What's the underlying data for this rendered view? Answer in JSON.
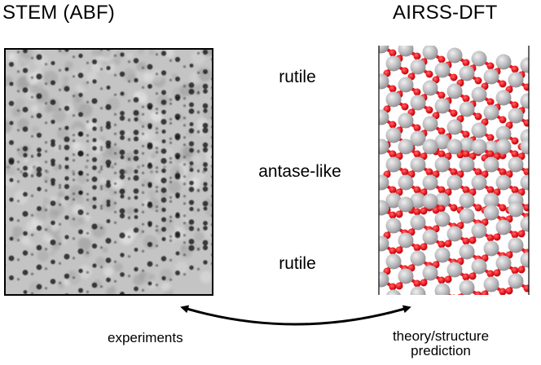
{
  "panels": {
    "left_title": "STEM (ABF)",
    "right_title": "AIRSS-DFT"
  },
  "layers": [
    {
      "label": "rutile"
    },
    {
      "label": "antase-like"
    },
    {
      "label": "rutile"
    }
  ],
  "captions": {
    "left": "experiments",
    "right_line1": "theory/structure",
    "right_line2": "prediction"
  },
  "colors": {
    "oxygen": "#e8141c",
    "titanium": "#b9b9bc",
    "stem_background": "#c4c4c4",
    "stem_spot": "#1e1e1e",
    "arrow": "#000000"
  }
}
